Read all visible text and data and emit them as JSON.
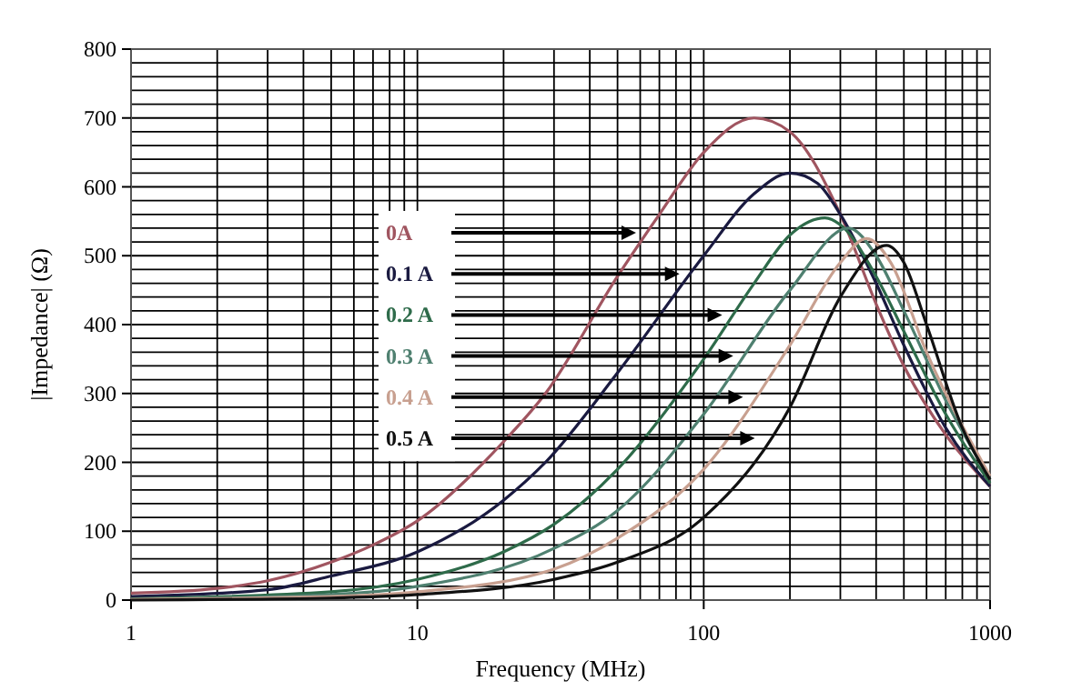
{
  "chart_data": {
    "type": "line",
    "xlabel": "Frequency (MHz)",
    "ylabel": "|Impedance| (Ω)",
    "log": "x",
    "xlim": [
      1,
      1000
    ],
    "xticks": [
      1,
      10,
      100,
      1000
    ],
    "ylim": [
      0,
      800
    ],
    "yticks": [
      0,
      100,
      200,
      300,
      400,
      500,
      600,
      700,
      800
    ],
    "grid": true,
    "legend": false,
    "marker": "none",
    "line_style": "solid",
    "series": [
      {
        "name": "0A",
        "color": "#a05560",
        "x": [
          1,
          2,
          3,
          5,
          7,
          10,
          20,
          28,
          50,
          70,
          100,
          150,
          200,
          300,
          400,
          500,
          700,
          1000
        ],
        "values": [
          10,
          17,
          28,
          55,
          80,
          115,
          230,
          300,
          470,
          560,
          650,
          700,
          680,
          560,
          430,
          340,
          240,
          165
        ]
      },
      {
        "name": "0.1 A",
        "color": "#1a1a40",
        "x": [
          1,
          3,
          5,
          10,
          20,
          28,
          50,
          100,
          150,
          200,
          250,
          300,
          400,
          500,
          700,
          1000
        ],
        "values": [
          5,
          15,
          35,
          70,
          145,
          200,
          330,
          500,
          590,
          620,
          605,
          560,
          460,
          370,
          250,
          165
        ]
      },
      {
        "name": "0.2 A",
        "color": "#2e6b4a",
        "x": [
          1,
          5,
          10,
          20,
          30,
          50,
          100,
          150,
          200,
          265,
          300,
          400,
          500,
          700,
          1000
        ],
        "values": [
          2,
          12,
          30,
          70,
          110,
          190,
          350,
          460,
          530,
          555,
          545,
          470,
          390,
          270,
          170
        ]
      },
      {
        "name": "0.3 A",
        "color": "#4f8070",
        "x": [
          1,
          5,
          10,
          30,
          50,
          100,
          200,
          320,
          400,
          500,
          700,
          1000
        ],
        "values": [
          1,
          8,
          20,
          75,
          130,
          270,
          450,
          540,
          500,
          420,
          290,
          175
        ]
      },
      {
        "name": "0.4 A",
        "color": "#c8a090",
        "x": [
          1,
          5,
          10,
          30,
          50,
          100,
          200,
          300,
          370,
          450,
          600,
          1000
        ],
        "values": [
          1,
          5,
          12,
          45,
          90,
          190,
          370,
          490,
          525,
          490,
          360,
          180
        ]
      },
      {
        "name": "0.5 A",
        "color": "#111111",
        "x": [
          1,
          5,
          10,
          30,
          50,
          100,
          200,
          300,
          435,
          500,
          600,
          800,
          1000
        ],
        "values": [
          0,
          3,
          8,
          30,
          55,
          120,
          280,
          440,
          515,
          490,
          400,
          250,
          175
        ]
      }
    ]
  }
}
